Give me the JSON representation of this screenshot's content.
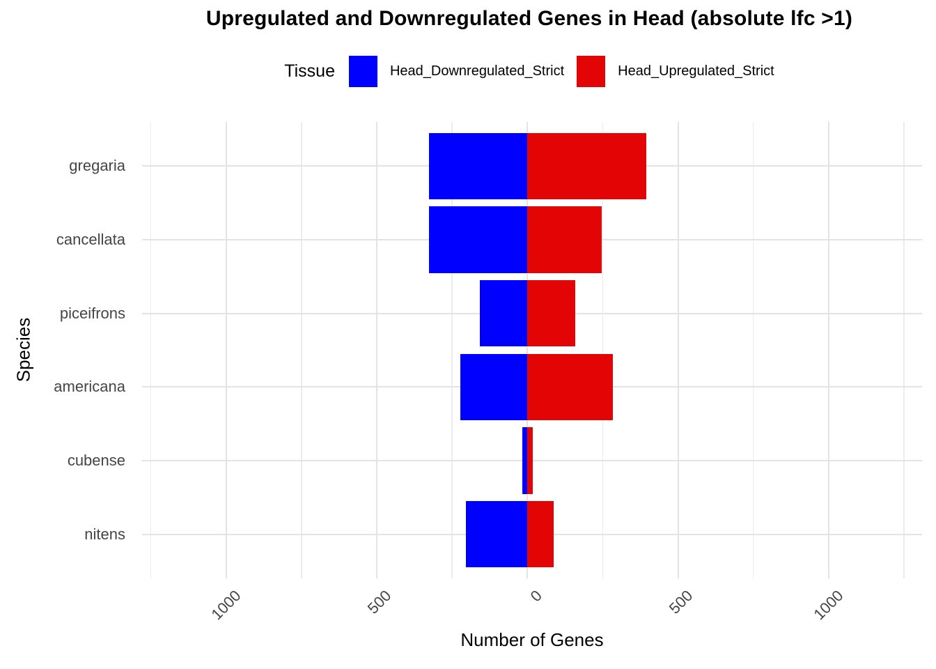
{
  "title": "Upregulated and Downregulated Genes in Head (absolute lfc >1)",
  "legend": {
    "title": "Tissue",
    "position": "top",
    "items": [
      {
        "label": "Head_Downregulated_Strict",
        "color": "#0000FF"
      },
      {
        "label": "Head_Upregulated_Strict",
        "color": "#E30505"
      }
    ]
  },
  "axes": {
    "x_title": "Number of Genes",
    "y_title": "Species"
  },
  "colors": {
    "background": "#FFFFFF",
    "grid_major": "#E3E3E3",
    "grid_minor": "#ECECEC",
    "tick_label": "#454545",
    "title_text": "#000000",
    "downregulated": "#0000FF",
    "upregulated": "#E30505"
  },
  "chart_data": {
    "type": "bar",
    "subtype": "horizontal-diverging",
    "title": "Upregulated and Downregulated Genes in Head (absolute lfc >1)",
    "xlabel": "Number of Genes",
    "ylabel": "Species",
    "categories": [
      "gregaria",
      "cancellata",
      "piceifrons",
      "americana",
      "cubense",
      "nitens"
    ],
    "series": [
      {
        "name": "Head_Downregulated_Strict",
        "color": "#0000FF",
        "values": [
          -327,
          -327,
          -157,
          -223,
          -18,
          -203
        ]
      },
      {
        "name": "Head_Upregulated_Strict",
        "color": "#E30505",
        "values": [
          395,
          247,
          160,
          284,
          18,
          87
        ]
      }
    ],
    "x_axis": {
      "xlim": [
        -1279,
        1310
      ],
      "major_ticks": [
        -1000,
        -500,
        0,
        500,
        1000
      ],
      "tick_labels": [
        "1000",
        "500",
        "0",
        "500",
        "1000"
      ],
      "minor_ticks": [
        -1250,
        -750,
        -250,
        250,
        750,
        1250
      ],
      "tick_label_angle": 45
    },
    "grid": true,
    "legend_position": "top",
    "bar_width": 0.9
  }
}
